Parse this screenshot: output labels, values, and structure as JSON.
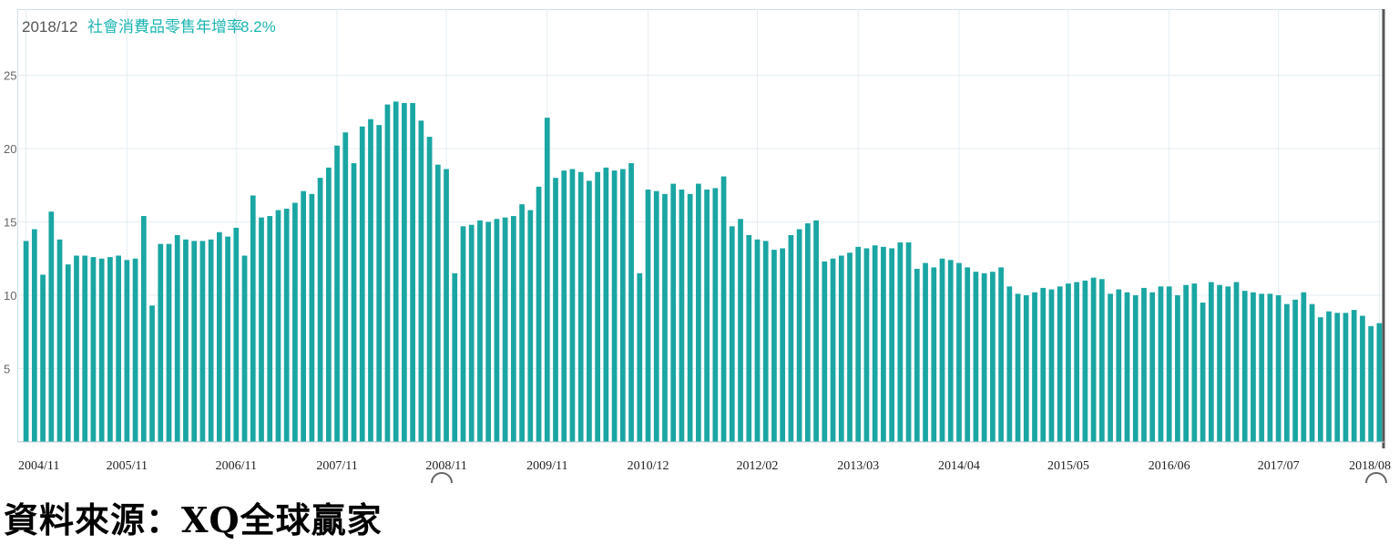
{
  "header": {
    "date": "2018/12",
    "series_label": "社會消費品零售年增率",
    "value": "8.2%"
  },
  "source_text": "資料來源：XQ全球贏家",
  "colors": {
    "bar": "#1aa6a3",
    "grid": "#e3eef3",
    "cursor": "#555555"
  },
  "chart_data": {
    "type": "bar",
    "title": "",
    "xlabel": "",
    "ylabel": "",
    "ylim": [
      0,
      29.5
    ],
    "y_ticks": [
      5,
      10,
      15,
      20,
      25
    ],
    "x_tick_labels": [
      "2004/11",
      "2005/11",
      "2006/11",
      "2007/11",
      "2008/11",
      "2009/11",
      "2010/12",
      "2012/02",
      "2013/03",
      "2014/04",
      "2015/05",
      "2016/06",
      "2017/07",
      "2018/08"
    ],
    "grid": true,
    "series": [
      {
        "values": [
          13.7,
          14.5,
          11.4,
          15.7,
          13.8,
          12.1,
          12.7,
          12.7,
          12.6,
          12.5,
          12.6,
          12.7,
          12.4,
          12.5,
          15.4,
          9.3,
          13.5,
          13.5,
          14.1,
          13.8,
          13.7,
          13.7,
          13.8,
          14.3,
          14.0,
          14.6,
          12.7,
          16.8,
          15.3,
          15.4,
          15.8,
          15.9,
          16.3,
          17.1,
          16.9,
          18.0,
          18.7,
          20.2,
          21.1,
          19.0,
          21.5,
          22.0,
          21.6,
          23.0,
          23.2,
          23.1,
          23.1,
          21.9,
          20.8,
          18.9,
          18.6,
          11.5,
          14.7,
          14.8,
          15.1,
          15.0,
          15.2,
          15.3,
          15.4,
          16.2,
          15.8,
          17.4,
          22.1,
          18.0,
          18.5,
          18.6,
          18.4,
          17.8,
          18.4,
          18.7,
          18.5,
          18.6,
          19.0,
          11.5,
          17.2,
          17.1,
          16.9,
          17.6,
          17.2,
          16.9,
          17.6,
          17.2,
          17.3,
          18.1,
          14.7,
          15.2,
          14.1,
          13.8,
          13.7,
          13.1,
          13.2,
          14.1,
          14.5,
          14.9,
          15.1,
          12.3,
          12.5,
          12.7,
          12.9,
          13.3,
          13.2,
          13.4,
          13.3,
          13.2,
          13.6,
          13.6,
          11.8,
          12.2,
          11.9,
          12.5,
          12.4,
          12.2,
          11.9,
          11.6,
          11.5,
          11.6,
          11.9,
          10.6,
          10.1,
          10.0,
          10.2,
          10.5,
          10.4,
          10.6,
          10.8,
          10.9,
          11.0,
          11.2,
          11.1,
          10.1,
          10.4,
          10.2,
          10.0,
          10.5,
          10.2,
          10.6,
          10.6,
          10.0,
          10.7,
          10.8,
          9.5,
          10.9,
          10.7,
          10.6,
          10.9,
          10.3,
          10.2,
          10.1,
          10.1,
          10.0,
          9.4,
          9.7,
          10.2,
          9.4,
          8.5,
          8.9,
          8.8,
          8.8,
          9.0,
          8.6,
          7.9,
          8.1
        ]
      }
    ]
  }
}
